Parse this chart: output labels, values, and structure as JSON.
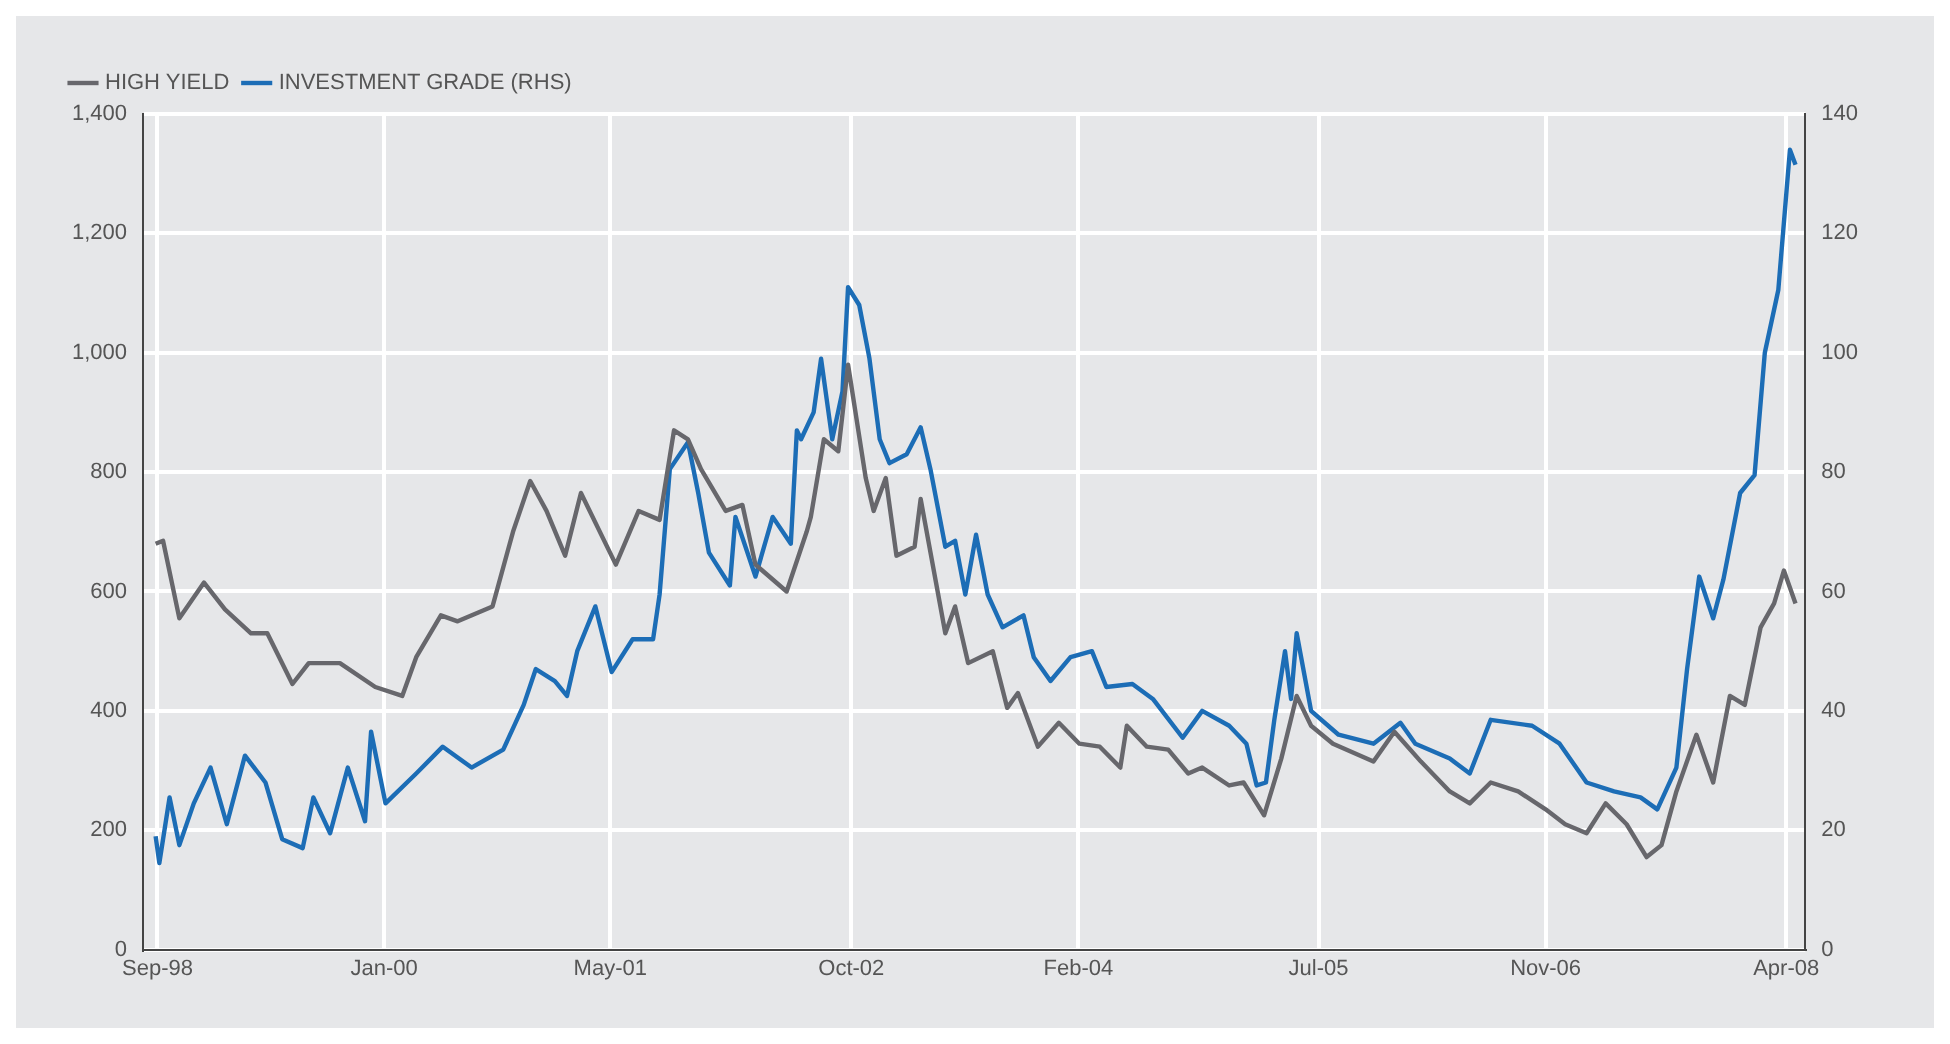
{
  "chart_data": {
    "type": "line",
    "legend": "top left",
    "grid": true,
    "marker": "none",
    "line_style": "solid",
    "xlim": [
      "1998-08-01",
      "2008-05-12"
    ],
    "xticks": [
      {
        "value": "1998-09-01",
        "label": "Sep-98"
      },
      {
        "value": "2000-01-01",
        "label": "Jan-00"
      },
      {
        "value": "2001-05-01",
        "label": "May-01"
      },
      {
        "value": "2002-10-01",
        "label": "Oct-02"
      },
      {
        "value": "2004-02-01",
        "label": "Feb-04"
      },
      {
        "value": "2005-07-01",
        "label": "Jul-05"
      },
      {
        "value": "2006-11-01",
        "label": "Nov-06"
      },
      {
        "value": "2008-04-01",
        "label": "Apr-08"
      }
    ],
    "ylim": [
      0,
      1400
    ],
    "yticks": [
      {
        "value": 0,
        "label": "0"
      },
      {
        "value": 200,
        "label": "200"
      },
      {
        "value": 400,
        "label": "400"
      },
      {
        "value": 600,
        "label": "600"
      },
      {
        "value": 800,
        "label": "800"
      },
      {
        "value": 1000,
        "label": "1,000"
      },
      {
        "value": 1200,
        "label": "1,200"
      },
      {
        "value": 1400,
        "label": "1,400"
      }
    ],
    "y2lim": [
      0,
      140
    ],
    "y2ticks": [
      0,
      20,
      40,
      60,
      80,
      100,
      120,
      140
    ],
    "series": [
      {
        "name": "HIGH YIELD",
        "color": "#67676c",
        "x": [
          "1998-08-28",
          "1998-09-13",
          "1998-10-18",
          "1998-12-10",
          "1999-01-24",
          "1999-03-21",
          "1999-04-25",
          "1999-06-18",
          "1999-07-23",
          "1999-09-28",
          "1999-12-13",
          "2000-02-09",
          "2000-03-10",
          "2000-05-02",
          "2000-06-07",
          "2000-08-21",
          "2000-10-04",
          "2000-11-10",
          "2000-12-15",
          "2001-01-24",
          "2001-02-27",
          "2001-05-13",
          "2001-07-01",
          "2001-08-15",
          "2001-09-15",
          "2001-10-15",
          "2001-11-12",
          "2002-01-04",
          "2002-02-09",
          "2002-03-09",
          "2002-05-15",
          "2002-06-27",
          "2002-07-06",
          "2002-08-03",
          "2002-09-03",
          "2002-09-24",
          "2002-11-01",
          "2002-11-18",
          "2002-12-14",
          "2003-01-06",
          "2003-02-14",
          "2003-02-27",
          "2003-04-21",
          "2003-05-12",
          "2003-06-09",
          "2003-08-01",
          "2003-09-01",
          "2003-09-24",
          "2003-11-06",
          "2003-12-21",
          "2004-02-03",
          "2004-03-18",
          "2004-05-01",
          "2004-05-15",
          "2004-06-27",
          "2004-08-12",
          "2004-09-24",
          "2004-10-24",
          "2004-12-21",
          "2005-01-21",
          "2005-02-18",
          "2005-03-06",
          "2005-04-12",
          "2005-05-15",
          "2005-06-15",
          "2005-08-01",
          "2005-10-27",
          "2005-12-11",
          "2006-02-06",
          "2006-04-09",
          "2006-05-22",
          "2006-07-06",
          "2006-09-03",
          "2006-11-01",
          "2006-12-13",
          "2007-01-28",
          "2007-03-10",
          "2007-04-24",
          "2007-06-06",
          "2007-07-08",
          "2007-08-09",
          "2007-09-21",
          "2007-10-27",
          "2007-12-02",
          "2008-01-03",
          "2008-02-06",
          "2008-03-06",
          "2008-03-27",
          "2008-04-21"
        ],
        "values": [
          680,
          685,
          555,
          615,
          570,
          530,
          530,
          445,
          480,
          480,
          440,
          425,
          490,
          560,
          550,
          575,
          700,
          785,
          735,
          660,
          765,
          645,
          735,
          720,
          870,
          855,
          805,
          735,
          745,
          645,
          600,
          700,
          725,
          855,
          835,
          980,
          790,
          735,
          790,
          660,
          675,
          755,
          530,
          575,
          480,
          500,
          405,
          430,
          340,
          380,
          345,
          340,
          305,
          375,
          340,
          335,
          295,
          305,
          275,
          280,
          245,
          225,
          320,
          425,
          375,
          345,
          315,
          365,
          315,
          265,
          245,
          280,
          265,
          235,
          210,
          195,
          245,
          210,
          155,
          175,
          265,
          360,
          280,
          425,
          410,
          540,
          580,
          635,
          580
        ]
      },
      {
        "name": "INVESTMENT GRADE (RHS)",
        "color": "#1c6db6",
        "axis": "y2",
        "x": [
          "1998-08-28",
          "1998-09-05",
          "1998-09-27",
          "1998-10-18",
          "1998-11-18",
          "1998-12-24",
          "1999-01-28",
          "1999-03-08",
          "1999-04-21",
          "1999-05-27",
          "1999-07-10",
          "1999-08-02",
          "1999-09-07",
          "1999-10-15",
          "1999-11-21",
          "1999-12-04",
          "2000-01-04",
          "2000-03-10",
          "2000-05-06",
          "2000-07-07",
          "2000-09-13",
          "2000-10-27",
          "2000-11-22",
          "2001-01-02",
          "2001-01-28",
          "2001-02-19",
          "2001-03-30",
          "2001-05-04",
          "2001-06-18",
          "2001-08-01",
          "2001-08-15",
          "2001-09-06",
          "2001-10-15",
          "2001-11-06",
          "2001-11-29",
          "2002-01-13",
          "2002-01-25",
          "2002-03-09",
          "2002-04-15",
          "2002-05-24",
          "2002-06-06",
          "2002-06-15",
          "2002-07-12",
          "2002-07-28",
          "2002-08-21",
          "2002-09-12",
          "2002-09-24",
          "2002-10-18",
          "2002-11-09",
          "2002-12-01",
          "2002-12-22",
          "2003-01-28",
          "2003-02-27",
          "2003-03-20",
          "2003-04-21",
          "2003-05-12",
          "2003-06-03",
          "2003-06-26",
          "2003-07-21",
          "2003-08-22",
          "2003-10-06",
          "2003-10-28",
          "2003-12-03",
          "2004-01-15",
          "2004-03-01",
          "2004-04-01",
          "2004-05-27",
          "2004-07-10",
          "2004-09-12",
          "2004-10-24",
          "2004-12-21",
          "2005-01-27",
          "2005-02-18",
          "2005-03-10",
          "2005-03-28",
          "2005-04-20",
          "2005-05-03",
          "2005-05-15",
          "2005-06-15",
          "2005-08-13",
          "2005-10-27",
          "2005-12-24",
          "2006-01-25",
          "2006-04-09",
          "2006-05-22",
          "2006-07-06",
          "2006-10-03",
          "2006-12-01",
          "2007-01-28",
          "2007-03-28",
          "2007-05-24",
          "2007-06-29",
          "2007-08-09",
          "2007-09-01",
          "2007-09-27",
          "2007-10-27",
          "2007-11-18",
          "2007-12-24",
          "2008-01-24",
          "2008-02-15",
          "2008-03-15",
          "2008-04-09",
          "2008-04-21"
        ],
        "values": [
          19,
          14.5,
          25.5,
          17.5,
          24.5,
          30.5,
          21,
          32.5,
          28,
          18.5,
          17,
          25.5,
          19.5,
          30.5,
          21.5,
          36.5,
          24.5,
          29.5,
          34,
          30.5,
          33.5,
          41,
          47,
          45,
          42.5,
          50,
          57.5,
          46.5,
          52,
          52,
          59.5,
          80.5,
          85,
          76.5,
          66.5,
          61,
          72.5,
          62.5,
          72.5,
          68,
          87,
          85.5,
          90,
          99,
          85.5,
          93.5,
          111,
          108,
          99,
          85.5,
          81.5,
          83,
          87.5,
          80.5,
          67.5,
          68.5,
          59.5,
          69.5,
          59.5,
          54,
          56,
          49,
          45,
          49,
          50,
          44,
          44.5,
          42,
          35.5,
          40,
          37.5,
          34.5,
          27.5,
          28,
          38.5,
          50,
          42,
          53,
          40,
          36,
          34.5,
          38,
          34.5,
          32,
          29.5,
          38.5,
          37.5,
          34.5,
          28,
          26.5,
          25.5,
          23.5,
          30.5,
          47,
          62.5,
          55.5,
          62,
          76.5,
          79.5,
          100,
          110.5,
          134,
          131.5
        ]
      }
    ]
  }
}
